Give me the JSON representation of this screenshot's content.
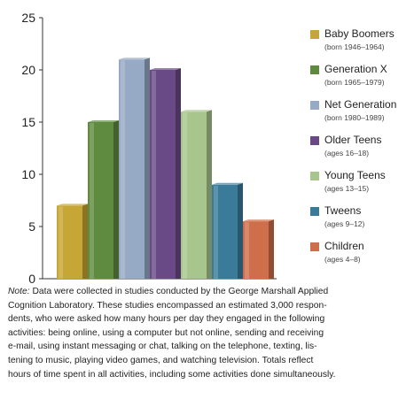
{
  "chart_data": {
    "type": "bar",
    "categories": [
      "Baby Boomers",
      "Generation X",
      "Net Generation",
      "Older Teens",
      "Young Teens",
      "Tweens",
      "Children"
    ],
    "series": [
      {
        "values": [
          7,
          15,
          21,
          20,
          16,
          9,
          5.5
        ]
      }
    ],
    "colors": [
      "#c6a634",
      "#5e8b3f",
      "#97aac5",
      "#6a4a86",
      "#a8c58e",
      "#3a7b9a",
      "#cf6e4a"
    ],
    "yticks": [
      "0",
      "5",
      "10",
      "15",
      "20",
      "25"
    ],
    "ylim": [
      0,
      25
    ],
    "grid": false,
    "style": "3d",
    "legend_position": "right"
  },
  "legend": [
    {
      "name": "Baby Boomers",
      "sub": "(born 1946–1964)"
    },
    {
      "name": "Generation X",
      "sub": "(born 1965–1979)"
    },
    {
      "name": "Net Generation",
      "sub": "(born 1980–1989)"
    },
    {
      "name": "Older Teens",
      "sub": "(ages 16–18)"
    },
    {
      "name": "Young Teens",
      "sub": "(ages 13–15)"
    },
    {
      "name": "Tweens",
      "sub": "(ages 9–12)"
    },
    {
      "name": "Children",
      "sub": "(ages 4–8)"
    }
  ],
  "note": {
    "label": "Note:",
    "line1": "Data were collected in studies conducted by the George Marshall Applied",
    "line2": "Cognition Laboratory. These studies encompassed an estimated 3,000 respon-",
    "line3": "dents, who were asked how many hours per day they engaged in the following",
    "line4": "activities: being online, using a computer but not online, sending and receiving",
    "line5": "e-mail, using instant messaging or chat, talking on the telephone, texting, lis-",
    "line6": "tening to music, playing video games, and watching television. Totals reflect",
    "line7": "hours of time spent in all activities, including some activities done simultaneously."
  }
}
